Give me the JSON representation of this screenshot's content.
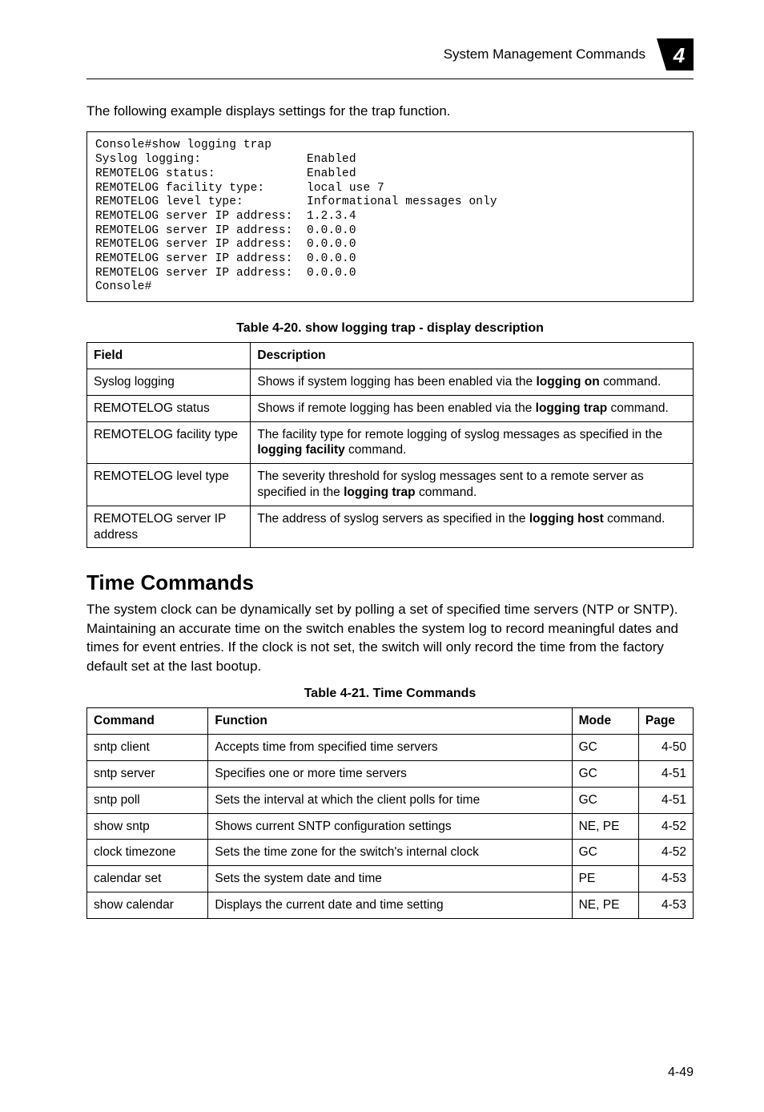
{
  "header": {
    "text": "System Management Commands",
    "chapter_number": "4",
    "badge_fill": "#000000",
    "badge_text_color": "#ffffff"
  },
  "intro_paragraph": "The following example displays settings for the trap function.",
  "code_block": "Console#show logging trap\nSyslog logging:               Enabled\nREMOTELOG status:             Enabled\nREMOTELOG facility type:      local use 7\nREMOTELOG level type:         Informational messages only\nREMOTELOG server IP address:  1.2.3.4\nREMOTELOG server IP address:  0.0.0.0\nREMOTELOG server IP address:  0.0.0.0\nREMOTELOG server IP address:  0.0.0.0\nREMOTELOG server IP address:  0.0.0.0\nConsole#",
  "table20": {
    "caption": "Table 4-20.   show logging trap - display description",
    "headers": [
      "Field",
      "Description"
    ],
    "rows": [
      [
        "Syslog logging",
        "Shows if system logging has been enabled via the <b>logging on</b> command."
      ],
      [
        "REMOTELOG status",
        "Shows if remote logging has been enabled via the <b>logging trap</b> command."
      ],
      [
        "REMOTELOG facility type",
        "The facility type for remote logging of syslog messages as specified in the <b>logging facility</b> command."
      ],
      [
        "REMOTELOG level type",
        "The severity threshold for syslog messages sent to a remote server as specified in the <b>logging trap</b> command."
      ],
      [
        "REMOTELOG server IP address",
        "The address of syslog servers as specified in the <b>logging host</b> command."
      ]
    ]
  },
  "section_heading": "Time Commands",
  "section_paragraph": "The system clock can be dynamically set by polling a set of specified time servers (NTP or SNTP). Maintaining an accurate time on the switch enables the system log to record meaningful dates and times for event entries. If the clock is not set, the switch will only record the time from the factory default set at the last bootup.",
  "table21": {
    "caption": "Table 4-21.   Time Commands",
    "headers": [
      "Command",
      "Function",
      "Mode",
      "Page"
    ],
    "rows": [
      [
        "sntp client",
        "Accepts time from specified time servers",
        "GC",
        "4-50"
      ],
      [
        "sntp server",
        "Specifies one or more time servers",
        "GC",
        "4-51"
      ],
      [
        "sntp poll",
        "Sets the interval at which the client polls for time",
        "GC",
        "4-51"
      ],
      [
        "show sntp",
        "Shows current SNTP configuration settings",
        "NE, PE",
        "4-52"
      ],
      [
        "clock timezone",
        "Sets the time zone for the switch's internal clock",
        "GC",
        "4-52"
      ],
      [
        "calendar set",
        "Sets the system date and time",
        "PE",
        "4-53"
      ],
      [
        "show calendar",
        "Displays the current date and time setting",
        "NE, PE",
        "4-53"
      ]
    ]
  },
  "footer": "4-49"
}
